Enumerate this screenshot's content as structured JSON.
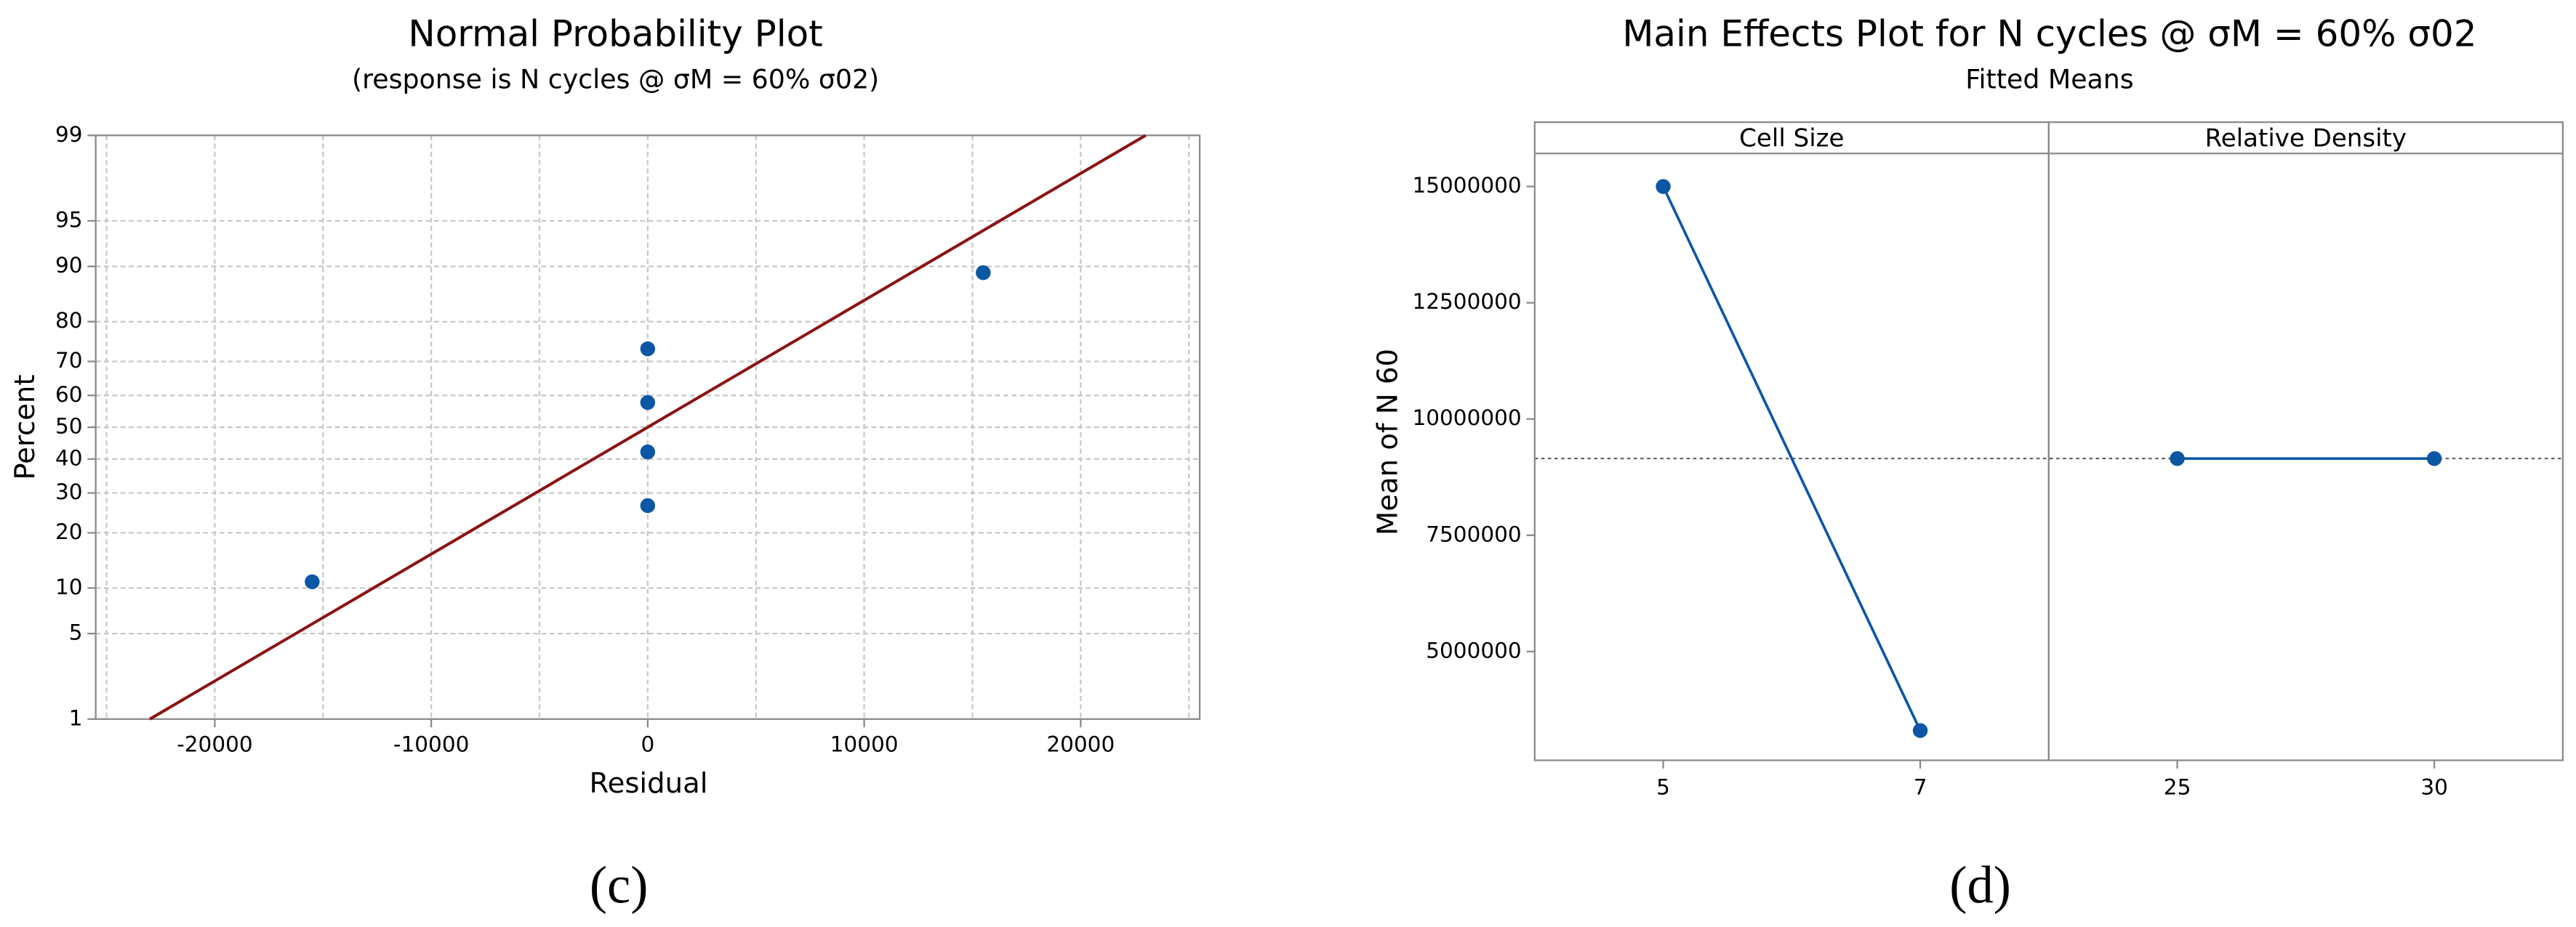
{
  "chart_data": [
    {
      "type": "normal_probability",
      "title": "Normal Probability Plot",
      "subtitle": "(response is  N cycles @ σM = 60% σ02)",
      "x_label": "Residual",
      "y_label": "Percent",
      "caption": "(c)",
      "x": [
        -15500,
        0,
        0,
        0,
        0,
        15500
      ],
      "values": [
        10.9,
        26.6,
        42.2,
        57.8,
        73.4,
        89.1
      ],
      "color": "#0b57a4",
      "fit": {
        "x": [
          -23000,
          23000
        ],
        "values": [
          1,
          99
        ],
        "color": "#8b1414"
      },
      "xlim": [
        -25500,
        25500
      ],
      "ylim": [
        1,
        99
      ],
      "xticks": [
        -20000,
        -10000,
        0,
        10000,
        20000
      ],
      "xgrid": [
        -25000,
        -20000,
        -15000,
        -10000,
        -5000,
        0,
        5000,
        10000,
        15000,
        20000,
        25000
      ],
      "yticks": [
        1,
        5,
        10,
        20,
        30,
        40,
        50,
        60,
        70,
        80,
        90,
        95,
        99
      ],
      "yscale": "probability",
      "grid": true
    },
    {
      "type": "main_effects",
      "title": "Main Effects Plot for N cycles @ σM = 60% σ02",
      "subtitle": "Fitted Means",
      "y_label": "Mean of N 60",
      "caption": "(d)",
      "panels": [
        {
          "name": "Cell Size",
          "categories": [
            "5",
            "7"
          ],
          "values": [
            15000000,
            3300000
          ]
        },
        {
          "name": "Relative Density",
          "categories": [
            "25",
            "30"
          ],
          "values": [
            9150000,
            9150000
          ]
        }
      ],
      "color": "#0b57a4",
      "reference_line": 9150000,
      "ylim": [
        2660000,
        15710000
      ],
      "yticks": [
        5000000,
        7500000,
        10000000,
        12500000,
        15000000
      ]
    }
  ]
}
